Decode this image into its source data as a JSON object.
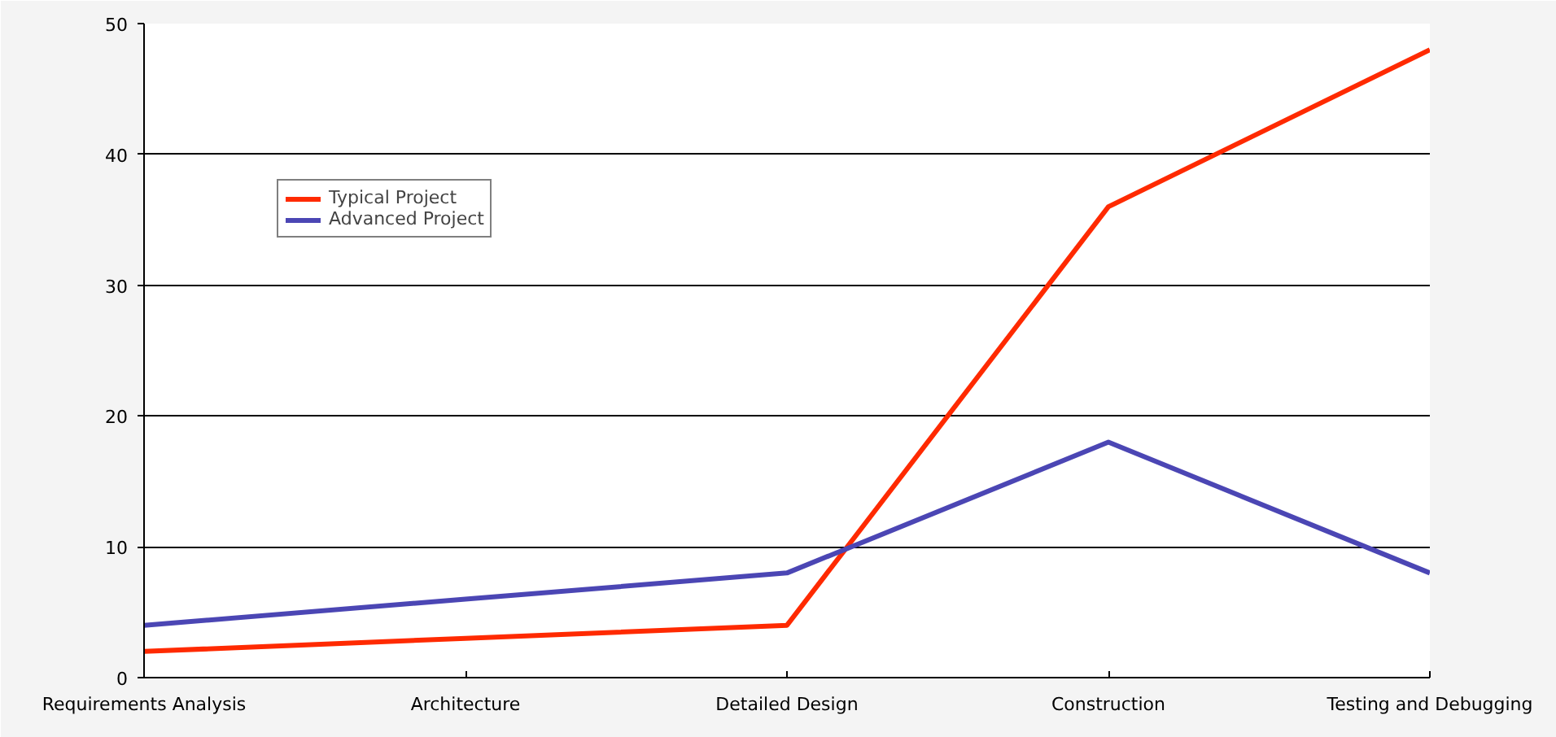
{
  "chart_data": {
    "type": "line",
    "categories": [
      "Requirements Analysis",
      "Architecture",
      "Detailed Design",
      "Construction",
      "Testing and Debugging"
    ],
    "series": [
      {
        "name": "Typical Project",
        "color": "#ff2a00",
        "values": [
          2,
          3,
          4,
          36,
          48
        ]
      },
      {
        "name": "Advanced Project",
        "color": "#4b46b4",
        "values": [
          4,
          6,
          8,
          18,
          8
        ]
      }
    ],
    "ylim": [
      0,
      50
    ],
    "yticks": [
      0,
      10,
      20,
      30,
      40,
      50
    ],
    "grid": "y",
    "legend": "top left",
    "marker": "none",
    "line_style": "solid"
  }
}
